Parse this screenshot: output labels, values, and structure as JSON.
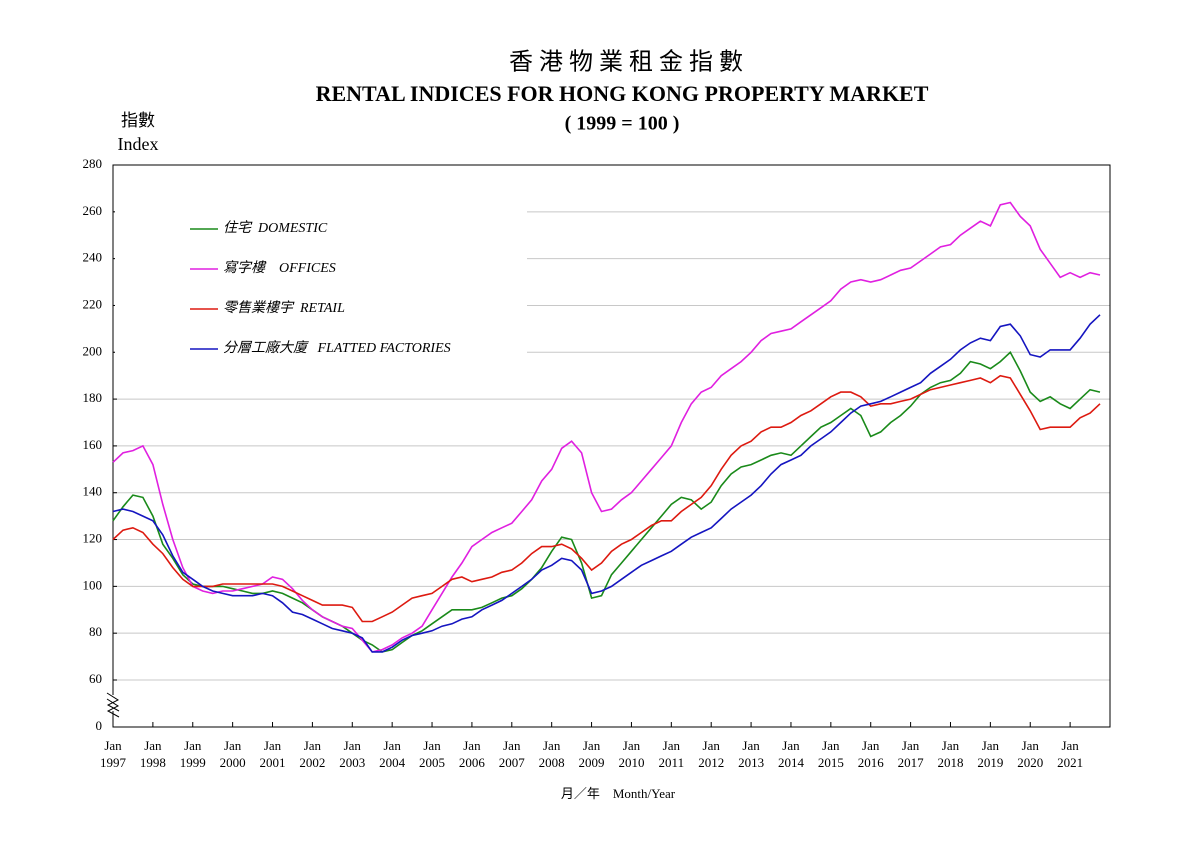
{
  "chart_data": {
    "type": "line",
    "title": "香 港 物 業 租 金 指 數",
    "subtitle": "RENTAL INDICES FOR HONG KONG PROPERTY MARKET",
    "base_note": "( 1999 = 100 )",
    "y_label_zh": "指數",
    "y_label": "Index",
    "x_label": "月／年　Month/Year",
    "x": [
      1997,
      1997.25,
      1997.5,
      1997.75,
      1998,
      1998.25,
      1998.5,
      1998.75,
      1999,
      1999.25,
      1999.5,
      1999.75,
      2000,
      2000.25,
      2000.5,
      2000.75,
      2001,
      2001.25,
      2001.5,
      2001.75,
      2002,
      2002.25,
      2002.5,
      2002.75,
      2003,
      2003.25,
      2003.5,
      2003.75,
      2004,
      2004.25,
      2004.5,
      2004.75,
      2005,
      2005.25,
      2005.5,
      2005.75,
      2006,
      2006.25,
      2006.5,
      2006.75,
      2007,
      2007.25,
      2007.5,
      2007.75,
      2008,
      2008.25,
      2008.5,
      2008.75,
      2009,
      2009.25,
      2009.5,
      2009.75,
      2010,
      2010.25,
      2010.5,
      2010.75,
      2011,
      2011.25,
      2011.5,
      2011.75,
      2012,
      2012.25,
      2012.5,
      2012.75,
      2013,
      2013.25,
      2013.5,
      2013.75,
      2014,
      2014.25,
      2014.5,
      2014.75,
      2015,
      2015.25,
      2015.5,
      2015.75,
      2016,
      2016.25,
      2016.5,
      2016.75,
      2017,
      2017.25,
      2017.5,
      2017.75,
      2018,
      2018.25,
      2018.5,
      2018.75,
      2019,
      2019.25,
      2019.5,
      2019.75,
      2020,
      2020.25,
      2020.5,
      2020.75,
      2021,
      2021.25,
      2021.5,
      2021.75
    ],
    "series": [
      {
        "name": "住宅  DOMESTIC",
        "color": "#1a8a1a",
        "values": [
          128,
          134,
          139,
          138,
          130,
          118,
          112,
          105,
          101,
          100,
          100,
          100,
          99,
          98,
          97,
          97,
          98,
          97,
          95,
          93,
          90,
          87,
          85,
          83,
          80,
          77,
          75,
          72,
          73,
          76,
          79,
          81,
          84,
          87,
          90,
          90,
          90,
          91,
          93,
          95,
          96,
          99,
          103,
          108,
          115,
          121,
          120,
          110,
          95,
          96,
          105,
          110,
          115,
          120,
          125,
          130,
          135,
          138,
          137,
          133,
          136,
          143,
          148,
          151,
          152,
          154,
          156,
          157,
          156,
          160,
          164,
          168,
          170,
          173,
          176,
          173,
          164,
          166,
          170,
          173,
          177,
          182,
          185,
          187,
          188,
          191,
          196,
          195,
          193,
          196,
          200,
          192,
          183,
          179,
          181,
          178,
          176,
          180,
          184,
          183
        ]
      },
      {
        "name": "寫字樓    OFFICES",
        "color": "#e020e0",
        "values": [
          153,
          157,
          158,
          160,
          152,
          135,
          120,
          108,
          100,
          98,
          97,
          98,
          98,
          99,
          100,
          101,
          104,
          103,
          99,
          94,
          90,
          87,
          85,
          83,
          82,
          77,
          72,
          73,
          75,
          78,
          80,
          83,
          90,
          97,
          104,
          110,
          117,
          120,
          123,
          125,
          127,
          132,
          137,
          145,
          150,
          159,
          162,
          157,
          140,
          132,
          133,
          137,
          140,
          145,
          150,
          155,
          160,
          170,
          178,
          183,
          185,
          190,
          193,
          196,
          200,
          205,
          208,
          209,
          210,
          213,
          216,
          219,
          222,
          227,
          230,
          231,
          230,
          231,
          233,
          235,
          236,
          239,
          242,
          245,
          246,
          250,
          253,
          256,
          254,
          263,
          264,
          258,
          254,
          244,
          238,
          232,
          234,
          232,
          234,
          233
        ]
      },
      {
        "name": "零售業樓宇  RETAIL",
        "color": "#dd1a10",
        "values": [
          120,
          124,
          125,
          123,
          118,
          114,
          108,
          103,
          100,
          100,
          100,
          101,
          101,
          101,
          101,
          101,
          101,
          100,
          98,
          96,
          94,
          92,
          92,
          92,
          91,
          85,
          85,
          87,
          89,
          92,
          95,
          96,
          97,
          100,
          103,
          104,
          102,
          103,
          104,
          106,
          107,
          110,
          114,
          117,
          117,
          118,
          116,
          112,
          107,
          110,
          115,
          118,
          120,
          123,
          126,
          128,
          128,
          132,
          135,
          138,
          143,
          150,
          156,
          160,
          162,
          166,
          168,
          168,
          170,
          173,
          175,
          178,
          181,
          183,
          183,
          181,
          177,
          178,
          178,
          179,
          180,
          182,
          184,
          185,
          186,
          187,
          188,
          189,
          187,
          190,
          189,
          182,
          175,
          167,
          168,
          168,
          168,
          172,
          174,
          178
        ]
      },
      {
        "name": "分層工廠大廈   FLATTED FACTORIES",
        "color": "#1515c0",
        "values": [
          132,
          133,
          132,
          130,
          128,
          122,
          113,
          106,
          103,
          100,
          98,
          97,
          96,
          96,
          96,
          97,
          96,
          93,
          89,
          88,
          86,
          84,
          82,
          81,
          80,
          78,
          72,
          72,
          74,
          77,
          79,
          80,
          81,
          83,
          84,
          86,
          87,
          90,
          92,
          94,
          97,
          100,
          103,
          107,
          109,
          112,
          111,
          107,
          97,
          98,
          100,
          103,
          106,
          109,
          111,
          113,
          115,
          118,
          121,
          123,
          125,
          129,
          133,
          136,
          139,
          143,
          148,
          152,
          154,
          156,
          160,
          163,
          166,
          170,
          174,
          177,
          178,
          179,
          181,
          183,
          185,
          187,
          191,
          194,
          197,
          201,
          204,
          206,
          205,
          211,
          212,
          207,
          199,
          198,
          201,
          201,
          201,
          206,
          212,
          216
        ]
      }
    ],
    "xlim": [
      1997,
      2022
    ],
    "xticks": [
      {
        "value": 1997,
        "label": "Jan\n1997"
      },
      {
        "value": 1998,
        "label": "Jan\n1998"
      },
      {
        "value": 1999,
        "label": "Jan\n1999"
      },
      {
        "value": 2000,
        "label": "Jan\n2000"
      },
      {
        "value": 2001,
        "label": "Jan\n2001"
      },
      {
        "value": 2002,
        "label": "Jan\n2002"
      },
      {
        "value": 2003,
        "label": "Jan\n2003"
      },
      {
        "value": 2004,
        "label": "Jan\n2004"
      },
      {
        "value": 2005,
        "label": "Jan\n2005"
      },
      {
        "value": 2006,
        "label": "Jan\n2006"
      },
      {
        "value": 2007,
        "label": "Jan\n2007"
      },
      {
        "value": 2008,
        "label": "Jan\n2008"
      },
      {
        "value": 2009,
        "label": "Jan\n2009"
      },
      {
        "value": 2010,
        "label": "Jan\n2010"
      },
      {
        "value": 2011,
        "label": "Jan\n2011"
      },
      {
        "value": 2012,
        "label": "Jan\n2012"
      },
      {
        "value": 2013,
        "label": "Jan\n2013"
      },
      {
        "value": 2014,
        "label": "Jan\n2014"
      },
      {
        "value": 2015,
        "label": "Jan\n2015"
      },
      {
        "value": 2016,
        "label": "Jan\n2016"
      },
      {
        "value": 2017,
        "label": "Jan\n2017"
      },
      {
        "value": 2018,
        "label": "Jan\n2018"
      },
      {
        "value": 2019,
        "label": "Jan\n2019"
      },
      {
        "value": 2020,
        "label": "Jan\n2020"
      },
      {
        "value": 2021,
        "label": "Jan\n2021"
      }
    ],
    "ylim": [
      0,
      280
    ],
    "axis_break": [
      0,
      60
    ],
    "yticks": [
      0,
      60,
      80,
      100,
      120,
      140,
      160,
      180,
      200,
      220,
      240,
      260,
      280
    ],
    "grid": true,
    "legend": "upper left"
  }
}
